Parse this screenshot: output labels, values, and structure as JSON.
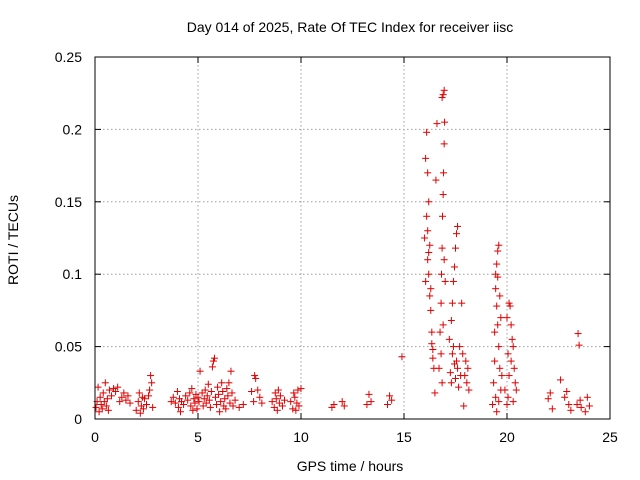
{
  "chart_data": {
    "type": "scatter",
    "title": "Day 014 of 2025, Rate Of TEC Index for receiver iisc",
    "xlabel": "GPS time / hours",
    "ylabel": "ROTI / TECUs",
    "xlim": [
      0,
      25
    ],
    "ylim": [
      0,
      0.25
    ],
    "xticks": [
      "0",
      "5",
      "10",
      "15",
      "20",
      "25"
    ],
    "yticks": [
      "0",
      "0.05",
      "0.1",
      "0.15",
      "0.2",
      "0.25"
    ],
    "grid": true,
    "marker": "+",
    "color": "#e00000",
    "points": [
      [
        0.05,
        0.008
      ],
      [
        0.1,
        0.012
      ],
      [
        0.15,
        0.022
      ],
      [
        0.2,
        0.005
      ],
      [
        0.25,
        0.015
      ],
      [
        0.3,
        0.01
      ],
      [
        0.35,
        0.007
      ],
      [
        0.4,
        0.018
      ],
      [
        0.45,
        0.012
      ],
      [
        0.5,
        0.025
      ],
      [
        0.55,
        0.009
      ],
      [
        0.6,
        0.014
      ],
      [
        0.65,
        0.006
      ],
      [
        0.7,
        0.02
      ],
      [
        0.8,
        0.016
      ],
      [
        0.9,
        0.021
      ],
      [
        1.0,
        0.019
      ],
      [
        1.1,
        0.022
      ],
      [
        1.2,
        0.012
      ],
      [
        1.3,
        0.015
      ],
      [
        1.4,
        0.018
      ],
      [
        1.5,
        0.013
      ],
      [
        1.6,
        0.016
      ],
      [
        1.7,
        0.011
      ],
      [
        2.0,
        0.006
      ],
      [
        2.1,
        0.012
      ],
      [
        2.15,
        0.018
      ],
      [
        2.2,
        0.004
      ],
      [
        2.25,
        0.009
      ],
      [
        2.3,
        0.015
      ],
      [
        2.35,
        0.007
      ],
      [
        2.4,
        0.014
      ],
      [
        2.5,
        0.01
      ],
      [
        2.6,
        0.016
      ],
      [
        2.65,
        0.02
      ],
      [
        2.7,
        0.03
      ],
      [
        2.75,
        0.025
      ],
      [
        2.8,
        0.008
      ],
      [
        3.7,
        0.012
      ],
      [
        3.8,
        0.015
      ],
      [
        3.9,
        0.011
      ],
      [
        4.0,
        0.019
      ],
      [
        4.05,
        0.008
      ],
      [
        4.1,
        0.014
      ],
      [
        4.15,
        0.005
      ],
      [
        4.2,
        0.012
      ],
      [
        4.3,
        0.01
      ],
      [
        4.4,
        0.016
      ],
      [
        4.5,
        0.013
      ],
      [
        4.6,
        0.018
      ],
      [
        4.65,
        0.009
      ],
      [
        4.7,
        0.021
      ],
      [
        4.75,
        0.006
      ],
      [
        4.8,
        0.014
      ],
      [
        4.85,
        0.011
      ],
      [
        4.9,
        0.017
      ],
      [
        4.95,
        0.007
      ],
      [
        5.0,
        0.015
      ],
      [
        5.05,
        0.012
      ],
      [
        5.1,
        0.033
      ],
      [
        5.2,
        0.018
      ],
      [
        5.25,
        0.009
      ],
      [
        5.3,
        0.014
      ],
      [
        5.35,
        0.02
      ],
      [
        5.4,
        0.011
      ],
      [
        5.45,
        0.016
      ],
      [
        5.5,
        0.024
      ],
      [
        5.55,
        0.013
      ],
      [
        5.6,
        0.008
      ],
      [
        5.65,
        0.019
      ],
      [
        5.7,
        0.036
      ],
      [
        5.75,
        0.04
      ],
      [
        5.8,
        0.042
      ],
      [
        5.85,
        0.015
      ],
      [
        5.9,
        0.01
      ],
      [
        5.95,
        0.022
      ],
      [
        6.0,
        0.017
      ],
      [
        6.05,
        0.005
      ],
      [
        6.1,
        0.012
      ],
      [
        6.15,
        0.025
      ],
      [
        6.2,
        0.019
      ],
      [
        6.25,
        0.009
      ],
      [
        6.3,
        0.014
      ],
      [
        6.35,
        0.007
      ],
      [
        6.4,
        0.021
      ],
      [
        6.45,
        0.016
      ],
      [
        6.5,
        0.025
      ],
      [
        6.55,
        0.011
      ],
      [
        6.6,
        0.033
      ],
      [
        6.65,
        0.018
      ],
      [
        6.7,
        0.009
      ],
      [
        6.8,
        0.013
      ],
      [
        7.0,
        0.008
      ],
      [
        7.2,
        0.01
      ],
      [
        7.6,
        0.019
      ],
      [
        7.7,
        0.012
      ],
      [
        7.75,
        0.03
      ],
      [
        7.8,
        0.028
      ],
      [
        7.9,
        0.02
      ],
      [
        8.0,
        0.015
      ],
      [
        8.1,
        0.011
      ],
      [
        8.6,
        0.012
      ],
      [
        8.7,
        0.008
      ],
      [
        8.75,
        0.018
      ],
      [
        8.8,
        0.014
      ],
      [
        8.85,
        0.006
      ],
      [
        8.9,
        0.02
      ],
      [
        8.95,
        0.011
      ],
      [
        9.0,
        0.016
      ],
      [
        9.1,
        0.009
      ],
      [
        9.2,
        0.013
      ],
      [
        9.5,
        0.012
      ],
      [
        9.6,
        0.007
      ],
      [
        9.65,
        0.018
      ],
      [
        9.7,
        0.015
      ],
      [
        9.75,
        0.006
      ],
      [
        9.8,
        0.011
      ],
      [
        9.85,
        0.02
      ],
      [
        9.9,
        0.009
      ],
      [
        10.0,
        0.021
      ],
      [
        11.5,
        0.008
      ],
      [
        11.6,
        0.01
      ],
      [
        12.0,
        0.012
      ],
      [
        12.1,
        0.009
      ],
      [
        13.2,
        0.01
      ],
      [
        13.3,
        0.017
      ],
      [
        13.4,
        0.012
      ],
      [
        14.2,
        0.01
      ],
      [
        14.3,
        0.016
      ],
      [
        14.4,
        0.013
      ],
      [
        14.9,
        0.043
      ],
      [
        16.0,
        0.125
      ],
      [
        16.05,
        0.18
      ],
      [
        16.1,
        0.198
      ],
      [
        16.15,
        0.17
      ],
      [
        16.2,
        0.15
      ],
      [
        16.25,
        0.12
      ],
      [
        16.3,
        0.09
      ],
      [
        16.35,
        0.06
      ],
      [
        16.4,
        0.048
      ],
      [
        16.45,
        0.035
      ],
      [
        16.5,
        0.018
      ],
      [
        16.55,
        0.165
      ],
      [
        16.6,
        0.204
      ],
      [
        16.1,
        0.14
      ],
      [
        16.15,
        0.11
      ],
      [
        16.2,
        0.1
      ],
      [
        16.25,
        0.085
      ],
      [
        16.3,
        0.075
      ],
      [
        16.35,
        0.052
      ],
      [
        16.4,
        0.042
      ],
      [
        16.05,
        0.095
      ],
      [
        16.15,
        0.13
      ],
      [
        16.2,
        0.115
      ],
      [
        16.7,
        0.035
      ],
      [
        16.75,
        0.06
      ],
      [
        16.8,
        0.08
      ],
      [
        16.82,
        0.1
      ],
      [
        16.85,
        0.118
      ],
      [
        16.87,
        0.14
      ],
      [
        16.9,
        0.155
      ],
      [
        16.92,
        0.17
      ],
      [
        16.95,
        0.19
      ],
      [
        16.97,
        0.205
      ],
      [
        16.85,
        0.222
      ],
      [
        16.9,
        0.224
      ],
      [
        16.95,
        0.227
      ],
      [
        16.8,
        0.045
      ],
      [
        16.85,
        0.025
      ],
      [
        16.9,
        0.065
      ],
      [
        16.95,
        0.11
      ],
      [
        17.0,
        0.095
      ],
      [
        17.2,
        0.055
      ],
      [
        17.25,
        0.032
      ],
      [
        17.3,
        0.068
      ],
      [
        17.35,
        0.08
      ],
      [
        17.4,
        0.095
      ],
      [
        17.45,
        0.105
      ],
      [
        17.5,
        0.118
      ],
      [
        17.55,
        0.128
      ],
      [
        17.6,
        0.133
      ],
      [
        17.3,
        0.025
      ],
      [
        17.35,
        0.045
      ],
      [
        17.4,
        0.05
      ],
      [
        17.45,
        0.038
      ],
      [
        17.5,
        0.028
      ],
      [
        17.55,
        0.04
      ],
      [
        17.6,
        0.035
      ],
      [
        17.65,
        0.022
      ],
      [
        17.7,
        0.05
      ],
      [
        17.75,
        0.03
      ],
      [
        17.8,
        0.08
      ],
      [
        17.85,
        0.045
      ],
      [
        17.9,
        0.009
      ],
      [
        17.95,
        0.03
      ],
      [
        18.0,
        0.04
      ],
      [
        18.05,
        0.025
      ],
      [
        18.1,
        0.035
      ],
      [
        18.15,
        0.02
      ],
      [
        19.3,
        0.01
      ],
      [
        19.35,
        0.025
      ],
      [
        19.4,
        0.06
      ],
      [
        19.45,
        0.1
      ],
      [
        19.5,
        0.107
      ],
      [
        19.55,
        0.116
      ],
      [
        19.6,
        0.12
      ],
      [
        19.65,
        0.085
      ],
      [
        19.7,
        0.07
      ],
      [
        19.4,
        0.04
      ],
      [
        19.45,
        0.015
      ],
      [
        19.5,
        0.078
      ],
      [
        19.55,
        0.065
      ],
      [
        19.6,
        0.05
      ],
      [
        19.65,
        0.035
      ],
      [
        19.7,
        0.02
      ],
      [
        19.75,
        0.03
      ],
      [
        19.5,
        0.005
      ],
      [
        19.6,
        0.012
      ],
      [
        19.45,
        0.09
      ],
      [
        19.55,
        0.098
      ],
      [
        19.9,
        0.02
      ],
      [
        20.0,
        0.07
      ],
      [
        20.05,
        0.015
      ],
      [
        20.1,
        0.08
      ],
      [
        20.15,
        0.078
      ],
      [
        20.2,
        0.065
      ],
      [
        20.25,
        0.055
      ],
      [
        20.3,
        0.05
      ],
      [
        20.35,
        0.035
      ],
      [
        20.4,
        0.025
      ],
      [
        20.45,
        0.02
      ],
      [
        20.0,
        0.01
      ],
      [
        20.1,
        0.03
      ],
      [
        20.2,
        0.04
      ],
      [
        20.3,
        0.012
      ],
      [
        20.05,
        0.045
      ],
      [
        22.0,
        0.014
      ],
      [
        22.1,
        0.018
      ],
      [
        22.2,
        0.007
      ],
      [
        22.6,
        0.027
      ],
      [
        22.8,
        0.015
      ],
      [
        22.9,
        0.019
      ],
      [
        23.0,
        0.01
      ],
      [
        23.1,
        0.006
      ],
      [
        23.4,
        0.01
      ],
      [
        23.45,
        0.059
      ],
      [
        23.5,
        0.051
      ],
      [
        23.55,
        0.013
      ],
      [
        23.6,
        0.008
      ],
      [
        23.8,
        0.005
      ],
      [
        23.9,
        0.015
      ],
      [
        24.0,
        0.009
      ]
    ]
  }
}
